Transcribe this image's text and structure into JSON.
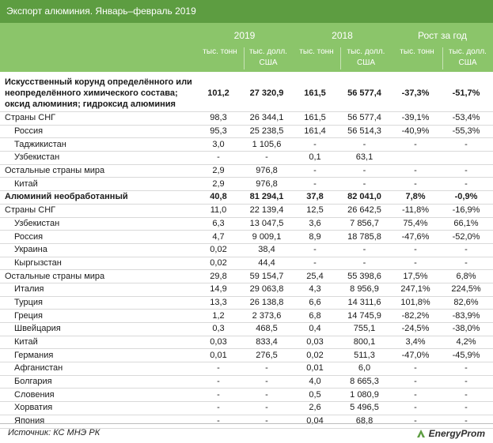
{
  "title": "Экспорт алюминия. Январь–февраль 2019",
  "header": {
    "year1": "2019",
    "year2": "2018",
    "growth": "Рост за год",
    "unit_tons": "тыс. тонн",
    "unit_usd": "тыс. долл. США"
  },
  "rows": [
    {
      "name": "Искусственный корунд определённого или неопределённого химического состава; оксид алюминия; гидроксид алюминия",
      "t19": "101,2",
      "u19": "27 320,9",
      "t18": "161,5",
      "u18": "56 577,4",
      "gt": "-37,3%",
      "gu": "-51,7%",
      "style": "bold big"
    },
    {
      "name": "Страны СНГ",
      "t19": "98,3",
      "u19": "26 344,1",
      "t18": "161,5",
      "u18": "56 577,4",
      "gt": "-39,1%",
      "gu": "-53,4%",
      "style": ""
    },
    {
      "name": "Россия",
      "t19": "95,3",
      "u19": "25 238,5",
      "t18": "161,4",
      "u18": "56 514,3",
      "gt": "-40,9%",
      "gu": "-55,3%",
      "style": "ind"
    },
    {
      "name": "Таджикистан",
      "t19": "3,0",
      "u19": "1 105,6",
      "t18": "-",
      "u18": "-",
      "gt": "-",
      "gu": "-",
      "style": "ind"
    },
    {
      "name": "Узбекистан",
      "t19": "-",
      "u19": "-",
      "t18": "0,1",
      "u18": "63,1",
      "gt": "",
      "gu": "",
      "style": "ind"
    },
    {
      "name": "Остальные страны мира",
      "t19": "2,9",
      "u19": "976,8",
      "t18": "-",
      "u18": "-",
      "gt": "-",
      "gu": "-",
      "style": ""
    },
    {
      "name": "Китай",
      "t19": "2,9",
      "u19": "976,8",
      "t18": "-",
      "u18": "-",
      "gt": "-",
      "gu": "-",
      "style": "ind"
    },
    {
      "name": "Алюминий необработанный",
      "t19": "40,8",
      "u19": "81 294,1",
      "t18": "37,8",
      "u18": "82 041,0",
      "gt": "7,8%",
      "gu": "-0,9%",
      "style": "bold"
    },
    {
      "name": "Страны СНГ",
      "t19": "11,0",
      "u19": "22 139,4",
      "t18": "12,5",
      "u18": "26 642,5",
      "gt": "-11,8%",
      "gu": "-16,9%",
      "style": ""
    },
    {
      "name": "Узбекистан",
      "t19": "6,3",
      "u19": "13 047,5",
      "t18": "3,6",
      "u18": "7 856,7",
      "gt": "75,4%",
      "gu": "66,1%",
      "style": "ind"
    },
    {
      "name": "Россия",
      "t19": "4,7",
      "u19": "9 009,1",
      "t18": "8,9",
      "u18": "18 785,8",
      "gt": "-47,6%",
      "gu": "-52,0%",
      "style": "ind"
    },
    {
      "name": "Украина",
      "t19": "0,02",
      "u19": "38,4",
      "t18": "-",
      "u18": "-",
      "gt": "-",
      "gu": "-",
      "style": "ind"
    },
    {
      "name": "Кыргызстан",
      "t19": "0,02",
      "u19": "44,4",
      "t18": "-",
      "u18": "-",
      "gt": "-",
      "gu": "-",
      "style": "ind"
    },
    {
      "name": "Остальные страны мира",
      "t19": "29,8",
      "u19": "59 154,7",
      "t18": "25,4",
      "u18": "55 398,6",
      "gt": "17,5%",
      "gu": "6,8%",
      "style": ""
    },
    {
      "name": "Италия",
      "t19": "14,9",
      "u19": "29 063,8",
      "t18": "4,3",
      "u18": "8 956,9",
      "gt": "247,1%",
      "gu": "224,5%",
      "style": "ind"
    },
    {
      "name": "Турция",
      "t19": "13,3",
      "u19": "26 138,8",
      "t18": "6,6",
      "u18": "14 311,6",
      "gt": "101,8%",
      "gu": "82,6%",
      "style": "ind"
    },
    {
      "name": "Греция",
      "t19": "1,2",
      "u19": "2 373,6",
      "t18": "6,8",
      "u18": "14 745,9",
      "gt": "-82,2%",
      "gu": "-83,9%",
      "style": "ind"
    },
    {
      "name": "Швейцария",
      "t19": "0,3",
      "u19": "468,5",
      "t18": "0,4",
      "u18": "755,1",
      "gt": "-24,5%",
      "gu": "-38,0%",
      "style": "ind"
    },
    {
      "name": "Китай",
      "t19": "0,03",
      "u19": "833,4",
      "t18": "0,03",
      "u18": "800,1",
      "gt": "3,4%",
      "gu": "4,2%",
      "style": "ind"
    },
    {
      "name": "Германия",
      "t19": "0,01",
      "u19": "276,5",
      "t18": "0,02",
      "u18": "511,3",
      "gt": "-47,0%",
      "gu": "-45,9%",
      "style": "ind"
    },
    {
      "name": "Афганистан",
      "t19": "-",
      "u19": "-",
      "t18": "0,01",
      "u18": "6,0",
      "gt": "-",
      "gu": "-",
      "style": "ind"
    },
    {
      "name": "Болгария",
      "t19": "-",
      "u19": "-",
      "t18": "4,0",
      "u18": "8 665,3",
      "gt": "-",
      "gu": "-",
      "style": "ind"
    },
    {
      "name": "Словения",
      "t19": "-",
      "u19": "-",
      "t18": "0,5",
      "u18": "1 080,9",
      "gt": "-",
      "gu": "-",
      "style": "ind"
    },
    {
      "name": "Хорватия",
      "t19": "-",
      "u19": "-",
      "t18": "2,6",
      "u18": "5 496,5",
      "gt": "-",
      "gu": "-",
      "style": "ind"
    },
    {
      "name": "Япония",
      "t19": "-",
      "u19": "-",
      "t18": "0,04",
      "u18": "68,8",
      "gt": "-",
      "gu": "-",
      "style": "ind"
    }
  ],
  "footer": {
    "source": "Источник: КС МНЭ РК",
    "logo": "EnergyProm"
  },
  "colors": {
    "title_bg": "#5d9d41",
    "header_bg": "#8bc56a"
  }
}
